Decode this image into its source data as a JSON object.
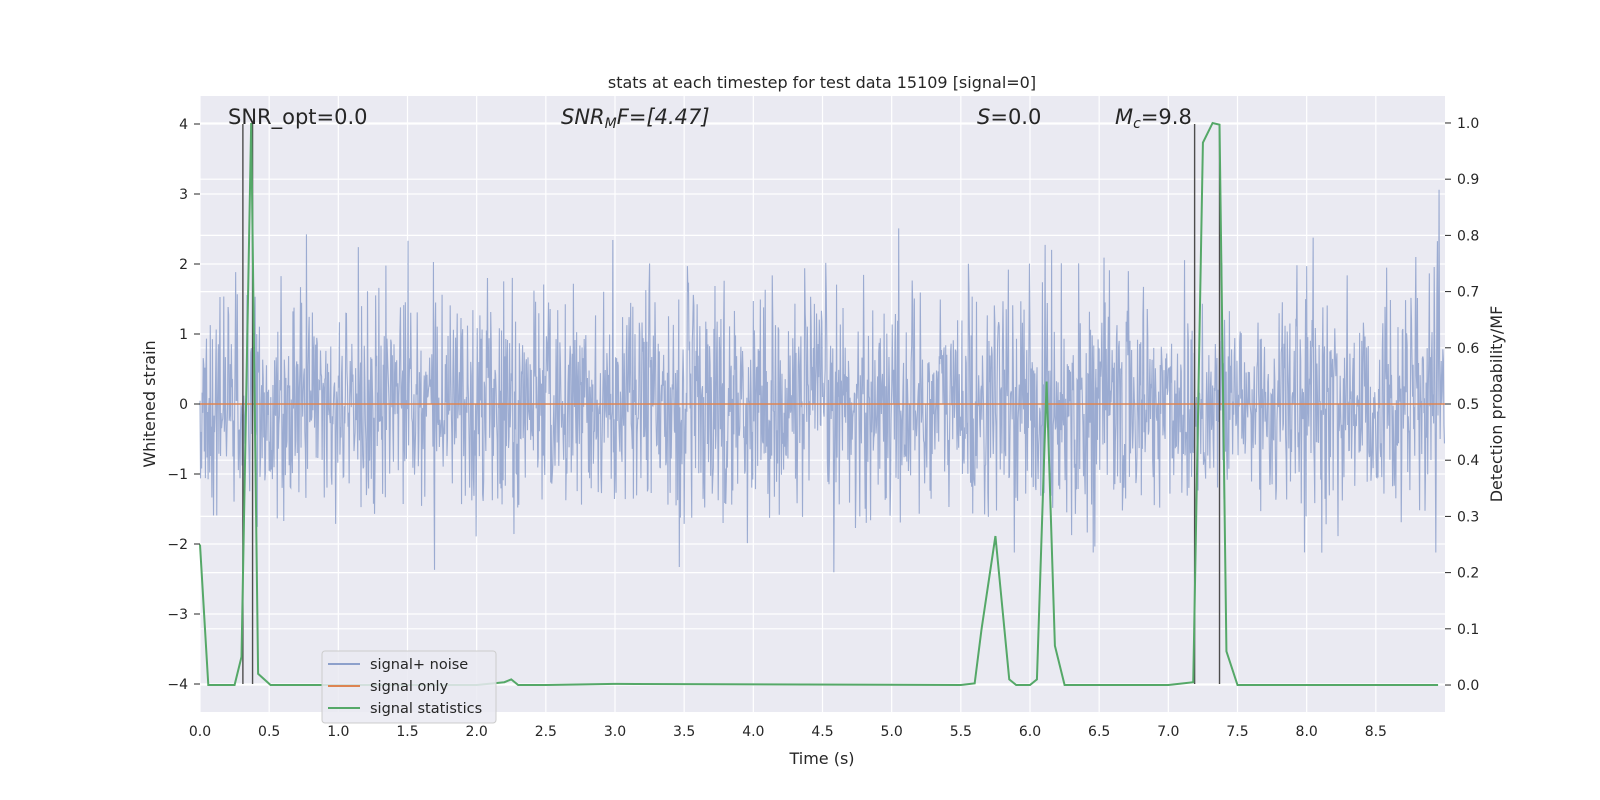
{
  "chart_data": {
    "type": "line",
    "title": "stats at each timestep for test data 15109 [signal=0]",
    "xlabel": "Time (s)",
    "ylabel": "Whitened strain",
    "y2label": "Detection probability/MF",
    "xlim": [
      0.0,
      9.0
    ],
    "ylim": [
      -4.4,
      4.4
    ],
    "y2lim": [
      -0.048,
      1.048
    ],
    "x_ticks": [
      "0.0",
      "0.5",
      "1.0",
      "1.5",
      "2.0",
      "2.5",
      "3.0",
      "3.5",
      "4.0",
      "4.5",
      "5.0",
      "5.5",
      "6.0",
      "6.5",
      "7.0",
      "7.5",
      "8.0",
      "8.5"
    ],
    "y_ticks": [
      "4",
      "3",
      "2",
      "1",
      "0",
      "−1",
      "−2",
      "−3",
      "−4"
    ],
    "y2_ticks": [
      "1.0",
      "0.9",
      "0.8",
      "0.7",
      "0.6",
      "0.5",
      "0.4",
      "0.3",
      "0.2",
      "0.1",
      "0.0"
    ],
    "grid": true,
    "legend_position": "lower-left",
    "annotations": {
      "snr_opt": "SNR_opt=0.0",
      "snr_mf_base": "SNR",
      "snr_mf_sub": "M",
      "snr_mf_rest": "F=[4.47]",
      "s_var": "S",
      "s_rest": "=0.0",
      "mc_var": "M",
      "mc_sub": "c",
      "mc_rest": "=9.8"
    },
    "series": [
      {
        "name": "signal+ noise",
        "color": "#8da0cb",
        "kind": "noise",
        "noise_std": 0.8,
        "sample_rate": 256,
        "value_range": [
          -4.0,
          4.0
        ]
      },
      {
        "name": "signal only",
        "color": "#dd8452",
        "kind": "flat",
        "value": 0.0
      },
      {
        "name": "signal statistics",
        "color": "#55a868",
        "axis": "right",
        "x": [
          0.0,
          0.06,
          0.12,
          0.25,
          0.3,
          0.37,
          0.42,
          0.51,
          0.6,
          1.5,
          2.0,
          2.2,
          2.25,
          2.3,
          2.5,
          3.0,
          5.5,
          5.6,
          5.65,
          5.75,
          5.85,
          5.9,
          6.0,
          6.05,
          6.12,
          6.18,
          6.25,
          6.3,
          6.5,
          7.0,
          7.18,
          7.25,
          7.32,
          7.37,
          7.42,
          7.5,
          8.0,
          8.95
        ],
        "y": [
          0.25,
          0.0,
          0.0,
          0.0,
          0.05,
          1.0,
          0.02,
          0.0,
          0.0,
          0.0,
          0.0,
          0.005,
          0.01,
          0.0,
          0.0,
          0.002,
          0.0,
          0.003,
          0.1,
          0.265,
          0.01,
          0.0,
          0.0,
          0.01,
          0.54,
          0.07,
          0.0,
          0.0,
          0.0,
          0.0,
          0.005,
          0.965,
          1.0,
          0.997,
          0.06,
          0.0,
          0.0,
          0.0
        ]
      }
    ],
    "vertical_lines": [
      0.31,
      0.38,
      7.19,
      7.37
    ]
  }
}
